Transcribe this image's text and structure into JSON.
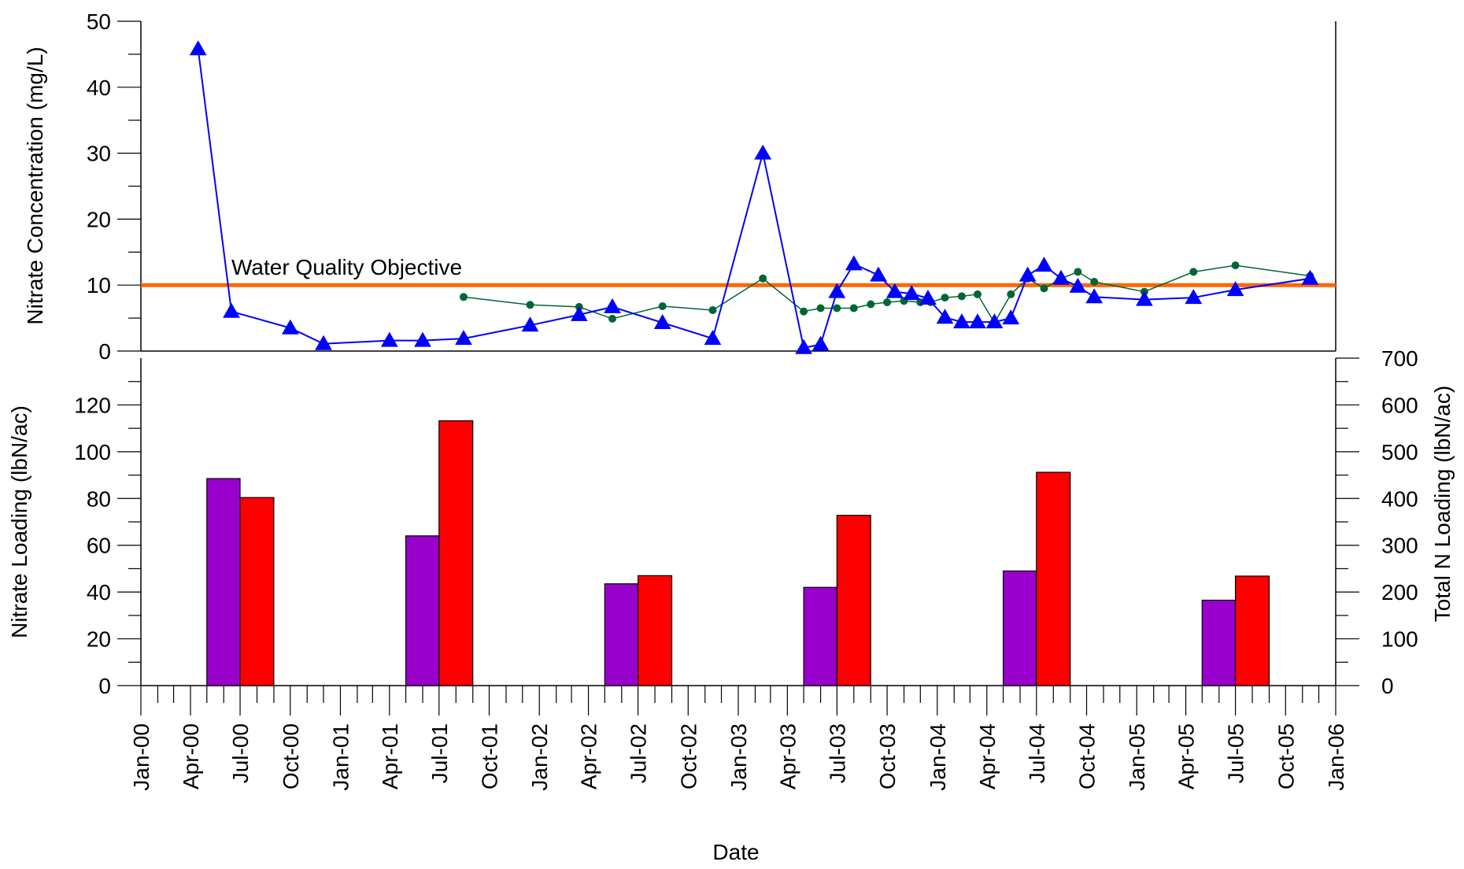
{
  "chart_data": [
    {
      "type": "line",
      "ylabel": "Nitrate Concentration (mg/L)",
      "ylim": [
        0,
        50
      ],
      "yticks": [
        0,
        10,
        20,
        30,
        40,
        50
      ],
      "grid": false,
      "reference_line": {
        "y": 10,
        "label": "Water Quality Objective",
        "color": "#ff6600"
      },
      "series": [
        {
          "marker": "triangle",
          "color": "#0000ff",
          "points": [
            [
              "2000-04-15",
              45.8
            ],
            [
              "2000-06-15",
              6.0
            ],
            [
              "2000-10-01",
              3.5
            ],
            [
              "2000-12-01",
              1.1
            ],
            [
              "2001-04-01",
              1.6
            ],
            [
              "2001-06-01",
              1.6
            ],
            [
              "2001-08-15",
              1.9
            ],
            [
              "2001-12-15",
              3.9
            ],
            [
              "2002-03-15",
              5.5
            ],
            [
              "2002-05-15",
              6.7
            ],
            [
              "2002-08-15",
              4.3
            ],
            [
              "2002-11-15",
              1.9
            ],
            [
              "2003-02-15",
              30.0
            ],
            [
              "2003-05-01",
              0.5
            ],
            [
              "2003-06-01",
              1.0
            ],
            [
              "2003-07-01",
              9.0
            ],
            [
              "2003-08-01",
              13.2
            ],
            [
              "2003-09-15",
              11.5
            ],
            [
              "2003-10-15",
              9.0
            ],
            [
              "2003-11-15",
              8.7
            ],
            [
              "2003-12-15",
              8.0
            ],
            [
              "2004-01-15",
              5.1
            ],
            [
              "2004-02-15",
              4.4
            ],
            [
              "2004-03-15",
              4.4
            ],
            [
              "2004-04-15",
              4.4
            ],
            [
              "2004-05-15",
              5.0
            ],
            [
              "2004-06-15",
              11.5
            ],
            [
              "2004-07-15",
              13.0
            ],
            [
              "2004-08-15",
              11.0
            ],
            [
              "2004-09-15",
              9.8
            ],
            [
              "2004-10-15",
              8.2
            ],
            [
              "2005-01-15",
              7.8
            ],
            [
              "2005-04-15",
              8.1
            ],
            [
              "2005-07-01",
              9.3
            ],
            [
              "2005-11-15",
              11.0
            ]
          ]
        },
        {
          "marker": "circle",
          "color": "#006633",
          "points": [
            [
              "2001-08-15",
              8.2
            ],
            [
              "2001-12-15",
              7.0
            ],
            [
              "2002-03-15",
              6.7
            ],
            [
              "2002-05-15",
              4.9
            ],
            [
              "2002-08-15",
              6.8
            ],
            [
              "2002-11-15",
              6.2
            ],
            [
              "2003-02-15",
              11.0
            ],
            [
              "2003-05-01",
              6.0
            ],
            [
              "2003-06-01",
              6.5
            ],
            [
              "2003-07-01",
              6.5
            ],
            [
              "2003-08-01",
              6.5
            ],
            [
              "2003-09-01",
              7.1
            ],
            [
              "2003-10-01",
              7.4
            ],
            [
              "2003-11-01",
              7.6
            ],
            [
              "2003-12-01",
              7.4
            ],
            [
              "2003-12-20",
              7.4
            ],
            [
              "2004-01-15",
              8.1
            ],
            [
              "2004-02-15",
              8.3
            ],
            [
              "2004-03-15",
              8.6
            ],
            [
              "2004-04-15",
              4.3
            ],
            [
              "2004-05-15",
              8.6
            ],
            [
              "2004-06-15",
              11.0
            ],
            [
              "2004-07-15",
              9.5
            ],
            [
              "2004-08-15",
              11.0
            ],
            [
              "2004-09-15",
              12.0
            ],
            [
              "2004-10-15",
              10.5
            ],
            [
              "2005-01-15",
              9.0
            ],
            [
              "2005-04-15",
              12.0
            ],
            [
              "2005-07-01",
              13.0
            ],
            [
              "2005-11-15",
              11.4
            ]
          ]
        }
      ]
    },
    {
      "type": "bar",
      "xlabel": "Date",
      "ylabel": "Nitrate Loading (lbN/ac)",
      "ylabel_right": "Total N Loading (lbN/ac)",
      "ylim": [
        0,
        140
      ],
      "yticks": [
        0,
        20,
        40,
        60,
        80,
        100,
        120
      ],
      "ylim_right": [
        0,
        700
      ],
      "yticks_right": [
        0,
        100,
        200,
        300,
        400,
        500,
        600,
        700
      ],
      "xlim": [
        "2000-01-01",
        "2006-01-01"
      ],
      "xticks": [
        "Jan-00",
        "Apr-00",
        "Jul-00",
        "Oct-00",
        "Jan-01",
        "Apr-01",
        "Jul-01",
        "Oct-01",
        "Jan-02",
        "Apr-02",
        "Jul-02",
        "Oct-02",
        "Jan-03",
        "Apr-03",
        "Jul-03",
        "Oct-03",
        "Jan-04",
        "Apr-04",
        "Jul-04",
        "Oct-04",
        "Jan-05",
        "Apr-05",
        "Jul-05",
        "Oct-05",
        "Jan-06"
      ],
      "series": [
        {
          "axis": "left",
          "color": "#9900cc",
          "bars": [
            {
              "start": "2000-05-01",
              "end": "2000-07-01",
              "value": 88.5
            },
            {
              "start": "2001-05-01",
              "end": "2001-07-01",
              "value": 64.0
            },
            {
              "start": "2002-05-01",
              "end": "2002-07-01",
              "value": 43.5
            },
            {
              "start": "2003-05-01",
              "end": "2003-07-01",
              "value": 42.0
            },
            {
              "start": "2004-05-01",
              "end": "2004-07-01",
              "value": 49.0
            },
            {
              "start": "2005-05-01",
              "end": "2005-07-01",
              "value": 36.5
            }
          ]
        },
        {
          "axis": "right",
          "color": "#ff0000",
          "bars": [
            {
              "start": "2000-07-01",
              "end": "2000-09-01",
              "value": 402
            },
            {
              "start": "2001-07-01",
              "end": "2001-09-01",
              "value": 566
            },
            {
              "start": "2002-07-01",
              "end": "2002-09-01",
              "value": 235
            },
            {
              "start": "2003-07-01",
              "end": "2003-09-01",
              "value": 364
            },
            {
              "start": "2004-07-01",
              "end": "2004-09-01",
              "value": 456
            },
            {
              "start": "2005-07-01",
              "end": "2005-09-01",
              "value": 234
            }
          ]
        }
      ]
    }
  ]
}
